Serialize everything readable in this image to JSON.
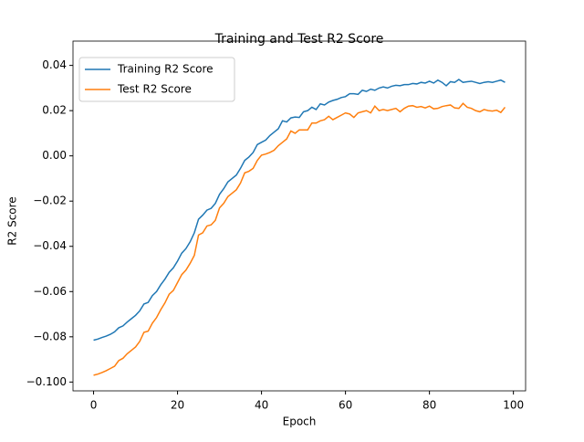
{
  "chart_data": {
    "type": "line",
    "title": "Training and Test R2 Score",
    "x_label": "Epoch",
    "y_label": "R2 Score",
    "x": [
      0,
      1,
      2,
      3,
      4,
      5,
      6,
      7,
      8,
      9,
      10,
      11,
      12,
      13,
      14,
      15,
      16,
      17,
      18,
      19,
      20,
      21,
      22,
      23,
      24,
      25,
      26,
      27,
      28,
      29,
      30,
      31,
      32,
      33,
      34,
      35,
      36,
      37,
      38,
      39,
      40,
      41,
      42,
      43,
      44,
      45,
      46,
      47,
      48,
      49,
      50,
      51,
      52,
      53,
      54,
      55,
      56,
      57,
      58,
      59,
      60,
      61,
      62,
      63,
      64,
      65,
      66,
      67,
      68,
      69,
      70,
      71,
      72,
      73,
      74,
      75,
      76,
      77,
      78,
      79,
      80,
      81,
      82,
      83,
      84,
      85,
      86,
      87,
      88,
      89,
      90,
      91,
      92,
      93,
      94,
      95,
      96,
      97,
      98
    ],
    "series": [
      {
        "name": "Training R2 Score",
        "color": "#1f77b4",
        "values": [
          -0.0815,
          -0.081,
          -0.0803,
          -0.0797,
          -0.0789,
          -0.0778,
          -0.076,
          -0.0752,
          -0.0735,
          -0.072,
          -0.0705,
          -0.0685,
          -0.0655,
          -0.0648,
          -0.0618,
          -0.06,
          -0.057,
          -0.0545,
          -0.0515,
          -0.0495,
          -0.0465,
          -0.043,
          -0.041,
          -0.038,
          -0.034,
          -0.028,
          -0.0262,
          -0.024,
          -0.0232,
          -0.021,
          -0.017,
          -0.0145,
          -0.0115,
          -0.01,
          -0.0085,
          -0.0055,
          -0.002,
          -0.0005,
          0.0015,
          0.005,
          0.006,
          0.007,
          0.009,
          0.0105,
          0.012,
          0.0155,
          0.015,
          0.0168,
          0.0172,
          0.017,
          0.0195,
          0.02,
          0.0215,
          0.0205,
          0.023,
          0.0225,
          0.0238,
          0.0245,
          0.025,
          0.0258,
          0.0262,
          0.0275,
          0.0275,
          0.0272,
          0.029,
          0.0285,
          0.0295,
          0.029,
          0.03,
          0.0305,
          0.03,
          0.0308,
          0.0312,
          0.031,
          0.0315,
          0.0315,
          0.032,
          0.0318,
          0.0325,
          0.0322,
          0.033,
          0.0322,
          0.0335,
          0.0325,
          0.031,
          0.0328,
          0.0325,
          0.0338,
          0.0325,
          0.0328,
          0.033,
          0.0325,
          0.032,
          0.0325,
          0.0328,
          0.0325,
          0.033,
          0.0335,
          0.0325
        ]
      },
      {
        "name": "Test R2 Score",
        "color": "#ff7f0e",
        "values": [
          -0.097,
          -0.0965,
          -0.0958,
          -0.095,
          -0.094,
          -0.093,
          -0.0905,
          -0.0895,
          -0.0875,
          -0.086,
          -0.0845,
          -0.082,
          -0.078,
          -0.0775,
          -0.074,
          -0.0715,
          -0.068,
          -0.065,
          -0.0612,
          -0.0595,
          -0.056,
          -0.0525,
          -0.0505,
          -0.0475,
          -0.044,
          -0.035,
          -0.034,
          -0.031,
          -0.0305,
          -0.0285,
          -0.023,
          -0.021,
          -0.018,
          -0.0165,
          -0.015,
          -0.012,
          -0.0075,
          -0.0068,
          -0.0055,
          -0.002,
          0.0003,
          0.0008,
          0.0015,
          0.0025,
          0.0045,
          0.006,
          0.0075,
          0.011,
          0.01,
          0.0115,
          0.0115,
          0.0115,
          0.0145,
          0.0145,
          0.0155,
          0.016,
          0.0175,
          0.016,
          0.017,
          0.018,
          0.019,
          0.0185,
          0.017,
          0.019,
          0.0195,
          0.02,
          0.019,
          0.022,
          0.02,
          0.0205,
          0.02,
          0.0205,
          0.021,
          0.0195,
          0.021,
          0.022,
          0.0222,
          0.0215,
          0.0218,
          0.0212,
          0.022,
          0.0208,
          0.021,
          0.0218,
          0.0222,
          0.0225,
          0.0212,
          0.021,
          0.0232,
          0.0215,
          0.021,
          0.02,
          0.0195,
          0.0205,
          0.02,
          0.0198,
          0.0202,
          0.0192,
          0.0215
        ]
      }
    ],
    "xlim": [
      -4.9,
      102.9
    ],
    "ylim": [
      -0.1039,
      0.0455
    ],
    "xticks": [
      0,
      20,
      40,
      60,
      80,
      100
    ],
    "yticks": [
      {
        "value": -0.1,
        "label": "−0.100"
      },
      {
        "value": -0.08,
        "label": "−0.08"
      },
      {
        "value": -0.06,
        "label": "−0.06"
      },
      {
        "value": -0.04,
        "label": "−0.04"
      },
      {
        "value": -0.02,
        "label": "−0.02"
      },
      {
        "value": 0,
        "label": "0.00"
      },
      0.02,
      0.04
    ],
    "legend": "upper-left"
  }
}
